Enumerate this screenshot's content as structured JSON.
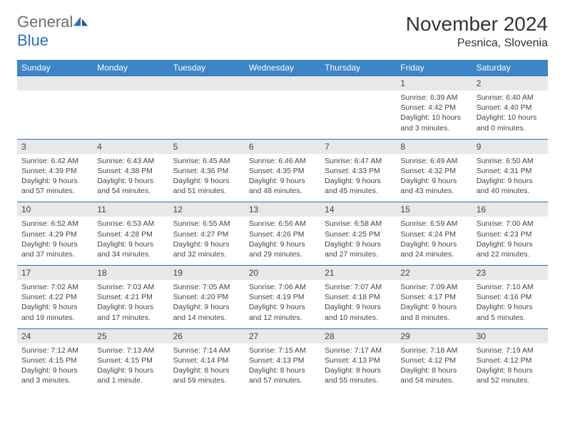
{
  "logo": {
    "text1": "General",
    "text2": "Blue"
  },
  "title": "November 2024",
  "location": "Pesnica, Slovenia",
  "weekdays": [
    "Sunday",
    "Monday",
    "Tuesday",
    "Wednesday",
    "Thursday",
    "Friday",
    "Saturday"
  ],
  "colors": {
    "header_bar": "#3d85c6",
    "daynum_bg": "#e8e8e8",
    "week_border": "#2a71b8",
    "text": "#444444",
    "logo_gray": "#6d6d6d",
    "logo_blue": "#2a71b8"
  },
  "weeks": [
    [
      {
        "blank": true
      },
      {
        "blank": true
      },
      {
        "blank": true
      },
      {
        "blank": true
      },
      {
        "blank": true
      },
      {
        "n": "1",
        "sunrise": "Sunrise: 6:39 AM",
        "sunset": "Sunset: 4:42 PM",
        "day1": "Daylight: 10 hours",
        "day2": "and 3 minutes."
      },
      {
        "n": "2",
        "sunrise": "Sunrise: 6:40 AM",
        "sunset": "Sunset: 4:40 PM",
        "day1": "Daylight: 10 hours",
        "day2": "and 0 minutes."
      }
    ],
    [
      {
        "n": "3",
        "sunrise": "Sunrise: 6:42 AM",
        "sunset": "Sunset: 4:39 PM",
        "day1": "Daylight: 9 hours",
        "day2": "and 57 minutes."
      },
      {
        "n": "4",
        "sunrise": "Sunrise: 6:43 AM",
        "sunset": "Sunset: 4:38 PM",
        "day1": "Daylight: 9 hours",
        "day2": "and 54 minutes."
      },
      {
        "n": "5",
        "sunrise": "Sunrise: 6:45 AM",
        "sunset": "Sunset: 4:36 PM",
        "day1": "Daylight: 9 hours",
        "day2": "and 51 minutes."
      },
      {
        "n": "6",
        "sunrise": "Sunrise: 6:46 AM",
        "sunset": "Sunset: 4:35 PM",
        "day1": "Daylight: 9 hours",
        "day2": "and 48 minutes."
      },
      {
        "n": "7",
        "sunrise": "Sunrise: 6:47 AM",
        "sunset": "Sunset: 4:33 PM",
        "day1": "Daylight: 9 hours",
        "day2": "and 45 minutes."
      },
      {
        "n": "8",
        "sunrise": "Sunrise: 6:49 AM",
        "sunset": "Sunset: 4:32 PM",
        "day1": "Daylight: 9 hours",
        "day2": "and 43 minutes."
      },
      {
        "n": "9",
        "sunrise": "Sunrise: 6:50 AM",
        "sunset": "Sunset: 4:31 PM",
        "day1": "Daylight: 9 hours",
        "day2": "and 40 minutes."
      }
    ],
    [
      {
        "n": "10",
        "sunrise": "Sunrise: 6:52 AM",
        "sunset": "Sunset: 4:29 PM",
        "day1": "Daylight: 9 hours",
        "day2": "and 37 minutes."
      },
      {
        "n": "11",
        "sunrise": "Sunrise: 6:53 AM",
        "sunset": "Sunset: 4:28 PM",
        "day1": "Daylight: 9 hours",
        "day2": "and 34 minutes."
      },
      {
        "n": "12",
        "sunrise": "Sunrise: 6:55 AM",
        "sunset": "Sunset: 4:27 PM",
        "day1": "Daylight: 9 hours",
        "day2": "and 32 minutes."
      },
      {
        "n": "13",
        "sunrise": "Sunrise: 6:56 AM",
        "sunset": "Sunset: 4:26 PM",
        "day1": "Daylight: 9 hours",
        "day2": "and 29 minutes."
      },
      {
        "n": "14",
        "sunrise": "Sunrise: 6:58 AM",
        "sunset": "Sunset: 4:25 PM",
        "day1": "Daylight: 9 hours",
        "day2": "and 27 minutes."
      },
      {
        "n": "15",
        "sunrise": "Sunrise: 6:59 AM",
        "sunset": "Sunset: 4:24 PM",
        "day1": "Daylight: 9 hours",
        "day2": "and 24 minutes."
      },
      {
        "n": "16",
        "sunrise": "Sunrise: 7:00 AM",
        "sunset": "Sunset: 4:23 PM",
        "day1": "Daylight: 9 hours",
        "day2": "and 22 minutes."
      }
    ],
    [
      {
        "n": "17",
        "sunrise": "Sunrise: 7:02 AM",
        "sunset": "Sunset: 4:22 PM",
        "day1": "Daylight: 9 hours",
        "day2": "and 19 minutes."
      },
      {
        "n": "18",
        "sunrise": "Sunrise: 7:03 AM",
        "sunset": "Sunset: 4:21 PM",
        "day1": "Daylight: 9 hours",
        "day2": "and 17 minutes."
      },
      {
        "n": "19",
        "sunrise": "Sunrise: 7:05 AM",
        "sunset": "Sunset: 4:20 PM",
        "day1": "Daylight: 9 hours",
        "day2": "and 14 minutes."
      },
      {
        "n": "20",
        "sunrise": "Sunrise: 7:06 AM",
        "sunset": "Sunset: 4:19 PM",
        "day1": "Daylight: 9 hours",
        "day2": "and 12 minutes."
      },
      {
        "n": "21",
        "sunrise": "Sunrise: 7:07 AM",
        "sunset": "Sunset: 4:18 PM",
        "day1": "Daylight: 9 hours",
        "day2": "and 10 minutes."
      },
      {
        "n": "22",
        "sunrise": "Sunrise: 7:09 AM",
        "sunset": "Sunset: 4:17 PM",
        "day1": "Daylight: 9 hours",
        "day2": "and 8 minutes."
      },
      {
        "n": "23",
        "sunrise": "Sunrise: 7:10 AM",
        "sunset": "Sunset: 4:16 PM",
        "day1": "Daylight: 9 hours",
        "day2": "and 5 minutes."
      }
    ],
    [
      {
        "n": "24",
        "sunrise": "Sunrise: 7:12 AM",
        "sunset": "Sunset: 4:15 PM",
        "day1": "Daylight: 9 hours",
        "day2": "and 3 minutes."
      },
      {
        "n": "25",
        "sunrise": "Sunrise: 7:13 AM",
        "sunset": "Sunset: 4:15 PM",
        "day1": "Daylight: 9 hours",
        "day2": "and 1 minute."
      },
      {
        "n": "26",
        "sunrise": "Sunrise: 7:14 AM",
        "sunset": "Sunset: 4:14 PM",
        "day1": "Daylight: 8 hours",
        "day2": "and 59 minutes."
      },
      {
        "n": "27",
        "sunrise": "Sunrise: 7:15 AM",
        "sunset": "Sunset: 4:13 PM",
        "day1": "Daylight: 8 hours",
        "day2": "and 57 minutes."
      },
      {
        "n": "28",
        "sunrise": "Sunrise: 7:17 AM",
        "sunset": "Sunset: 4:13 PM",
        "day1": "Daylight: 8 hours",
        "day2": "and 55 minutes."
      },
      {
        "n": "29",
        "sunrise": "Sunrise: 7:18 AM",
        "sunset": "Sunset: 4:12 PM",
        "day1": "Daylight: 8 hours",
        "day2": "and 54 minutes."
      },
      {
        "n": "30",
        "sunrise": "Sunrise: 7:19 AM",
        "sunset": "Sunset: 4:12 PM",
        "day1": "Daylight: 8 hours",
        "day2": "and 52 minutes."
      }
    ]
  ]
}
